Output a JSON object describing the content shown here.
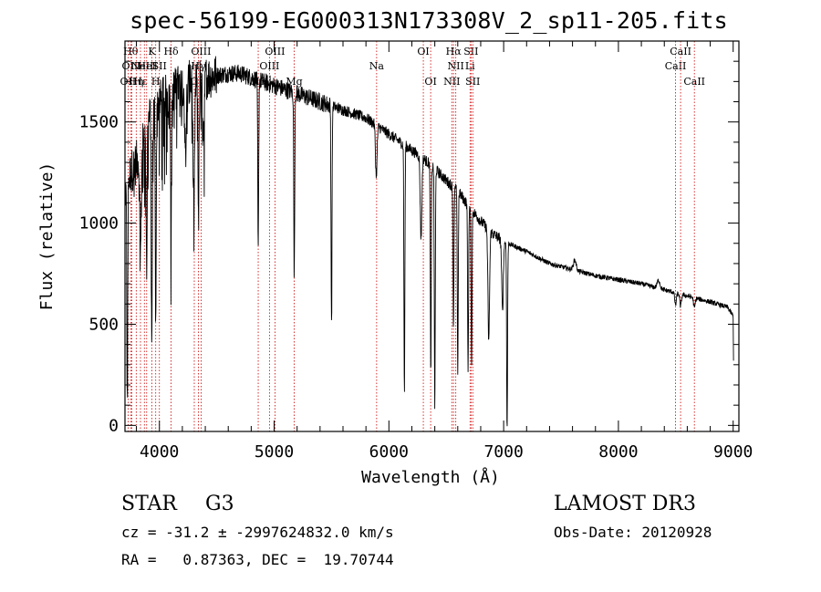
{
  "chart_data": {
    "type": "line",
    "title": "spec-56199-EG000313N173308V_2_sp11-205.fits",
    "xlabel": "Wavelength (Å)",
    "ylabel": "Flux (relative)",
    "xlim": [
      3700,
      9050
    ],
    "ylim": [
      -30,
      1900
    ],
    "x_ticks": [
      4000,
      5000,
      6000,
      7000,
      8000,
      9000
    ],
    "y_ticks": [
      0,
      500,
      1000,
      1500
    ],
    "x_tick_labels": [
      "4000",
      "5000",
      "6000",
      "7000",
      "8000",
      "9000"
    ],
    "y_tick_labels": [
      "0",
      "500",
      "1000",
      "1500"
    ],
    "continuum": [
      [
        3700,
        1150
      ],
      [
        3750,
        1250
      ],
      [
        3800,
        1300
      ],
      [
        3850,
        1380
      ],
      [
        3900,
        1500
      ],
      [
        3950,
        1560
      ],
      [
        4000,
        1600
      ],
      [
        4100,
        1650
      ],
      [
        4200,
        1690
      ],
      [
        4300,
        1700
      ],
      [
        4400,
        1720
      ],
      [
        4500,
        1730
      ],
      [
        4600,
        1740
      ],
      [
        4700,
        1740
      ],
      [
        4800,
        1720
      ],
      [
        4900,
        1700
      ],
      [
        5000,
        1680
      ],
      [
        5100,
        1660
      ],
      [
        5200,
        1640
      ],
      [
        5300,
        1620
      ],
      [
        5400,
        1600
      ],
      [
        5500,
        1580
      ],
      [
        5600,
        1560
      ],
      [
        5700,
        1540
      ],
      [
        5800,
        1520
      ],
      [
        5900,
        1480
      ],
      [
        6000,
        1440
      ],
      [
        6100,
        1400
      ],
      [
        6200,
        1360
      ],
      [
        6300,
        1320
      ],
      [
        6400,
        1270
      ],
      [
        6500,
        1210
      ],
      [
        6600,
        1160
      ],
      [
        6700,
        1080
      ],
      [
        6800,
        1010
      ],
      [
        6900,
        950
      ],
      [
        7000,
        910
      ],
      [
        7200,
        860
      ],
      [
        7400,
        800
      ],
      [
        7600,
        770
      ],
      [
        7800,
        740
      ],
      [
        8000,
        720
      ],
      [
        8200,
        700
      ],
      [
        8400,
        670
      ],
      [
        8600,
        640
      ],
      [
        8800,
        610
      ],
      [
        8950,
        585
      ],
      [
        9000,
        540
      ]
    ],
    "absorption_features": [
      {
        "x": 3720,
        "depth": 1100
      },
      {
        "x": 3835,
        "depth": 500
      },
      {
        "x": 3889,
        "depth": 700
      },
      {
        "x": 3934,
        "depth": 1200
      },
      {
        "x": 3968,
        "depth": 1100
      },
      {
        "x": 4102,
        "depth": 700
      },
      {
        "x": 4227,
        "depth": 350
      },
      {
        "x": 4300,
        "depth": 600
      },
      {
        "x": 4340,
        "depth": 650
      },
      {
        "x": 4383,
        "depth": 350
      },
      {
        "x": 4861,
        "depth": 850
      },
      {
        "x": 5175,
        "depth": 900
      },
      {
        "x": 5500,
        "depth": 1100
      },
      {
        "x": 5890,
        "depth": 250
      },
      {
        "x": 6135,
        "depth": 1250
      },
      {
        "x": 6280,
        "depth": 400
      },
      {
        "x": 6365,
        "depth": 1050
      },
      {
        "x": 6400,
        "depth": 1200
      },
      {
        "x": 6563,
        "depth": 700
      },
      {
        "x": 6600,
        "depth": 900
      },
      {
        "x": 6690,
        "depth": 800
      },
      {
        "x": 6720,
        "depth": 750
      },
      {
        "x": 6870,
        "depth": 550
      },
      {
        "x": 6990,
        "depth": 350
      },
      {
        "x": 7030,
        "depth": 930
      },
      {
        "x": 8498,
        "depth": 60
      },
      {
        "x": 8542,
        "depth": 60
      },
      {
        "x": 8662,
        "depth": 50
      }
    ],
    "emission_features": [
      {
        "x": 7620,
        "height": 50
      },
      {
        "x": 8350,
        "height": 40
      }
    ],
    "reference_lines": [
      {
        "x": 3727,
        "label": "OII",
        "row": 2
      },
      {
        "x": 3750,
        "label": "Hθ",
        "row": 0
      },
      {
        "x": 3760,
        "label": "OIII",
        "row": 1
      },
      {
        "x": 3798,
        "label": "Hη",
        "row": 2
      },
      {
        "x": 3835,
        "label": "Hε",
        "row": 2
      },
      {
        "x": 3869,
        "label": "NeIII",
        "row": 1
      },
      {
        "x": 3889,
        "label": "HeI",
        "row": 1
      },
      {
        "x": 3934,
        "label": "K",
        "row": 0
      },
      {
        "x": 3968,
        "label": "H",
        "row": 2
      },
      {
        "x": 4000,
        "label": "SII",
        "row": 1
      },
      {
        "x": 4102,
        "label": "Hδ",
        "row": 0
      },
      {
        "x": 4304,
        "label": "G",
        "row": 2
      },
      {
        "x": 4340,
        "label": "Hγ",
        "row": 1
      },
      {
        "x": 4363,
        "label": "OIII",
        "row": 0
      },
      {
        "x": 4861,
        "label": "Hβ",
        "row": 2
      },
      {
        "x": 4959,
        "label": "OIII",
        "row": 1
      },
      {
        "x": 5007,
        "label": "OIII",
        "row": 0
      },
      {
        "x": 5175,
        "label": "Mg",
        "row": 2
      },
      {
        "x": 5893,
        "label": "Na",
        "row": 1
      },
      {
        "x": 6300,
        "label": "OI",
        "row": 0
      },
      {
        "x": 6364,
        "label": "OI",
        "row": 2
      },
      {
        "x": 6548,
        "label": "NII",
        "row": 2
      },
      {
        "x": 6563,
        "label": "Hα",
        "row": 0
      },
      {
        "x": 6583,
        "label": "NII",
        "row": 1
      },
      {
        "x": 6707,
        "label": "Li",
        "row": 1
      },
      {
        "x": 6716,
        "label": "SII",
        "row": 0
      },
      {
        "x": 6731,
        "label": "SII",
        "row": 2
      },
      {
        "x": 8498,
        "label": "CaII",
        "row": 1
      },
      {
        "x": 8542,
        "label": "CaII",
        "row": 0
      },
      {
        "x": 8662,
        "label": "CaII",
        "row": 2
      }
    ],
    "line_color": "#000000",
    "reference_line_color": "#cc0000"
  },
  "info": {
    "object_class": "STAR",
    "subclass": "G3",
    "survey": "LAMOST DR3",
    "redshift_line": "cz = -31.2 ± -2997624832.0 km/s",
    "obs_date_line": "Obs-Date: 20120928",
    "coords_line": "RA =   0.87363, DEC =  19.70744"
  }
}
